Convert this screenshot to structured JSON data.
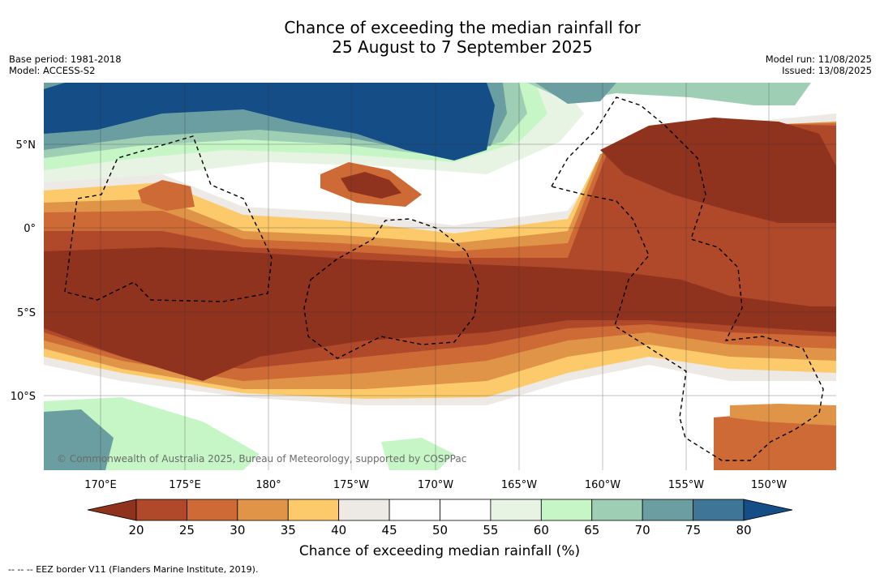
{
  "title_line1": "Chance of exceeding the median rainfall for",
  "title_line2": "25 August to 7 September 2025",
  "base_period": "Base period: 1981-2018",
  "model": "Model: ACCESS-S2",
  "model_run": "Model run: 11/08/2025",
  "issued": "Issued: 13/08/2025",
  "lat_labels": [
    "5°N",
    "0°",
    "5°S",
    "10°S"
  ],
  "lon_labels": [
    "170°E",
    "175°E",
    "180°",
    "175°W",
    "170°W",
    "165°W",
    "160°W",
    "155°W",
    "150°W"
  ],
  "copyright": "© Commonwealth of Australia 2025, Bureau of Meteorology, supported by COSPPac",
  "colorbar": {
    "title": "Chance of exceeding median rainfall (%)",
    "ticks": [
      "20",
      "25",
      "30",
      "35",
      "40",
      "45",
      "50",
      "55",
      "60",
      "65",
      "70",
      "75",
      "80"
    ],
    "colors": [
      "#8f321e",
      "#b0482a",
      "#cd6a35",
      "#e09448",
      "#fcca6a",
      "#ede9e5",
      "#ffffff",
      "#ffffff",
      "#e7f4e4",
      "#c6f6c6",
      "#9ecfb4",
      "#6b9ea1",
      "#3f7596",
      "#154d87"
    ]
  },
  "footnote": "--  --  -- EEZ border V11 (Flanders Marine Institute, 2019)."
}
